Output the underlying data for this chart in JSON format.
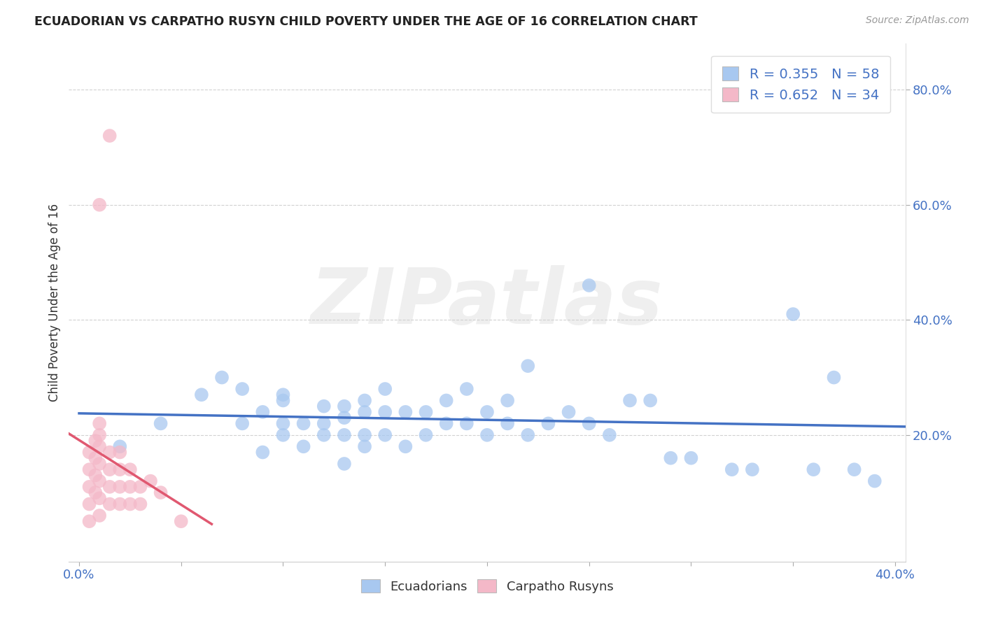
{
  "title": "ECUADORIAN VS CARPATHO RUSYN CHILD POVERTY UNDER THE AGE OF 16 CORRELATION CHART",
  "source": "Source: ZipAtlas.com",
  "ylabel": "Child Poverty Under the Age of 16",
  "xlim": [
    -0.005,
    0.405
  ],
  "ylim": [
    -0.02,
    0.88
  ],
  "xtick_positions": [
    0.0,
    0.05,
    0.1,
    0.15,
    0.2,
    0.25,
    0.3,
    0.35,
    0.4
  ],
  "ytick_positions": [
    0.2,
    0.4,
    0.6,
    0.8
  ],
  "ytick_labels": [
    "20.0%",
    "40.0%",
    "60.0%",
    "80.0%"
  ],
  "blue_R": 0.355,
  "blue_N": 58,
  "pink_R": 0.652,
  "pink_N": 34,
  "blue_color": "#A8C8F0",
  "pink_color": "#F4B8C8",
  "blue_line_color": "#4472C4",
  "pink_line_color": "#E05870",
  "blue_scatter_x": [
    0.02,
    0.04,
    0.06,
    0.07,
    0.08,
    0.08,
    0.09,
    0.09,
    0.1,
    0.1,
    0.1,
    0.1,
    0.11,
    0.11,
    0.12,
    0.12,
    0.12,
    0.13,
    0.13,
    0.13,
    0.13,
    0.14,
    0.14,
    0.14,
    0.14,
    0.15,
    0.15,
    0.15,
    0.16,
    0.16,
    0.17,
    0.17,
    0.18,
    0.18,
    0.19,
    0.19,
    0.2,
    0.2,
    0.21,
    0.21,
    0.22,
    0.22,
    0.23,
    0.24,
    0.25,
    0.25,
    0.26,
    0.27,
    0.28,
    0.29,
    0.3,
    0.32,
    0.33,
    0.35,
    0.36,
    0.37,
    0.38,
    0.39
  ],
  "blue_scatter_y": [
    0.18,
    0.22,
    0.27,
    0.3,
    0.22,
    0.28,
    0.17,
    0.24,
    0.2,
    0.26,
    0.22,
    0.27,
    0.18,
    0.22,
    0.2,
    0.22,
    0.25,
    0.15,
    0.2,
    0.23,
    0.25,
    0.18,
    0.2,
    0.24,
    0.26,
    0.2,
    0.24,
    0.28,
    0.18,
    0.24,
    0.2,
    0.24,
    0.22,
    0.26,
    0.22,
    0.28,
    0.2,
    0.24,
    0.22,
    0.26,
    0.2,
    0.32,
    0.22,
    0.24,
    0.46,
    0.22,
    0.2,
    0.26,
    0.26,
    0.16,
    0.16,
    0.14,
    0.14,
    0.41,
    0.14,
    0.3,
    0.14,
    0.12
  ],
  "pink_scatter_x": [
    0.005,
    0.005,
    0.005,
    0.005,
    0.005,
    0.008,
    0.008,
    0.008,
    0.008,
    0.01,
    0.01,
    0.01,
    0.01,
    0.01,
    0.01,
    0.01,
    0.01,
    0.015,
    0.015,
    0.015,
    0.015,
    0.015,
    0.02,
    0.02,
    0.02,
    0.02,
    0.025,
    0.025,
    0.025,
    0.03,
    0.03,
    0.035,
    0.04,
    0.05
  ],
  "pink_scatter_y": [
    0.05,
    0.08,
    0.11,
    0.14,
    0.17,
    0.1,
    0.13,
    0.16,
    0.19,
    0.06,
    0.09,
    0.12,
    0.15,
    0.18,
    0.2,
    0.22,
    0.6,
    0.08,
    0.11,
    0.14,
    0.17,
    0.72,
    0.08,
    0.11,
    0.14,
    0.17,
    0.08,
    0.11,
    0.14,
    0.08,
    0.11,
    0.12,
    0.1,
    0.05
  ],
  "watermark": "ZIPatlas",
  "watermark_color": "#CCCCCC",
  "background_color": "#FFFFFF",
  "grid_color": "#CCCCCC",
  "legend_label_blue": "R = 0.355   N = 58",
  "legend_label_pink": "R = 0.652   N = 34",
  "bottom_label_blue": "Ecuadorians",
  "bottom_label_pink": "Carpatho Rusyns"
}
